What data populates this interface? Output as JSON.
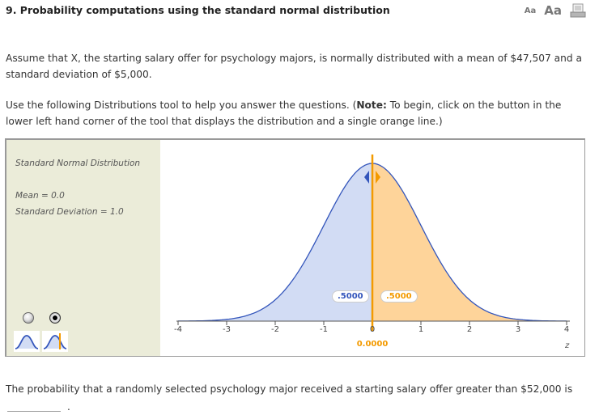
{
  "header": {
    "title": "9. Probability computations using the standard normal distribution",
    "font_small_label": "Aa",
    "font_large_label": "Aa",
    "print_icon": "print-icon"
  },
  "intro": {
    "paragraph1": "Assume that X, the starting salary offer for psychology majors, is normally distributed with a mean of $47,507 and a standard deviation of $5,000.",
    "paragraph2_prefix": "Use the following Distributions tool to help you answer the questions. (",
    "paragraph2_bold": "Note:",
    "paragraph2_suffix": " To begin, click on the button in the lower left hand corner of the tool that displays the distribution and a single orange line.)"
  },
  "tool": {
    "distribution_name": "Standard Normal Distribution",
    "mean_label": "Mean = 0.0",
    "sd_label": "Standard Deviation = 1.0",
    "modes": [
      {
        "name": "distribution-only",
        "selected": false,
        "icon": "normal-curve-icon"
      },
      {
        "name": "distribution-single-orange-line",
        "selected": true,
        "icon": "normal-curve-line-icon"
      }
    ],
    "colors": {
      "panel_bg": "#ebecd9",
      "left_fill": "#d2dcf4",
      "right_fill": "#fed49a",
      "curve": "#3355bb",
      "line": "#f39a00"
    },
    "left_area": ".5000",
    "right_area": ".5000",
    "line_z_value": "0.0000",
    "axis_label": "z",
    "ticks": [
      "-4",
      "-3",
      "-2",
      "-1",
      "0",
      "1",
      "2",
      "3",
      "4"
    ]
  },
  "question": {
    "text": "The probability that a randomly selected psychology major received a starting salary offer greater than $52,000 is",
    "answer_value": "",
    "terminator": "."
  },
  "chart_data": {
    "type": "area",
    "title": "Standard Normal Distribution",
    "xlabel": "z",
    "ylabel": "",
    "xlim": [
      -4,
      4
    ],
    "x_ticks": [
      -4,
      -3,
      -2,
      -1,
      0,
      1,
      2,
      3,
      4
    ],
    "mean": 0.0,
    "sd": 1.0,
    "cut_line": 0.0,
    "regions": [
      {
        "name": "left",
        "range": [
          -4,
          0
        ],
        "probability": 0.5,
        "color": "#d2dcf4"
      },
      {
        "name": "right",
        "range": [
          0,
          4
        ],
        "probability": 0.5,
        "color": "#fed49a"
      }
    ]
  }
}
